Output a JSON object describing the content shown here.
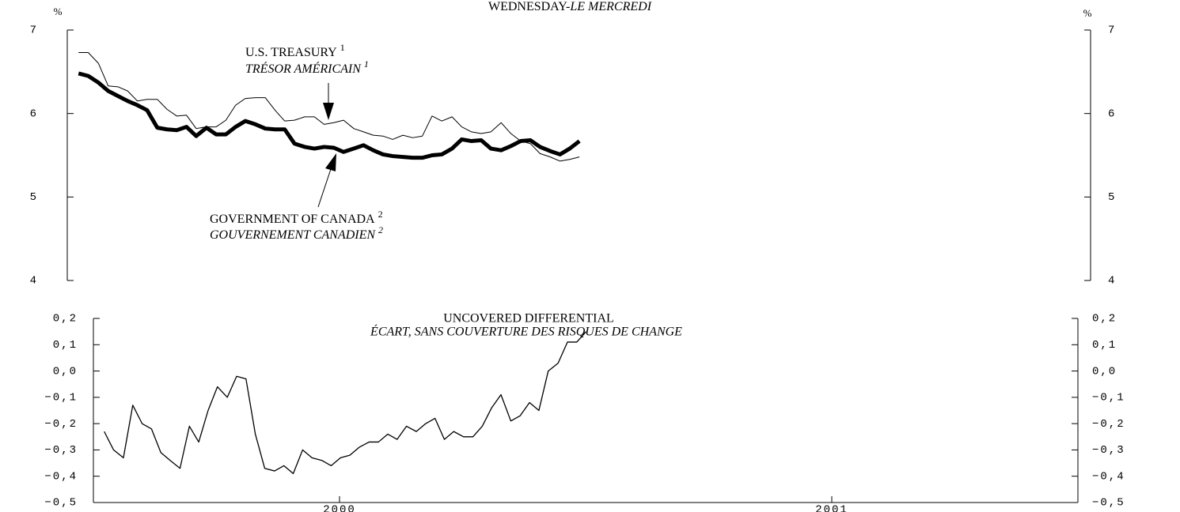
{
  "chart_data": [
    {
      "type": "line",
      "title": "WEDNESDAY-",
      "title_italic": "LE MERCREDI",
      "unit": "%",
      "x": [
        2000.022,
        2000.041,
        2000.061,
        2000.08,
        2000.099,
        2000.118,
        2000.137,
        2000.156,
        2000.176,
        2000.195,
        2000.214,
        2000.233,
        2000.252,
        2000.272,
        2000.291,
        2000.31,
        2000.329,
        2000.348,
        2000.368,
        2000.387,
        2000.406,
        2000.425,
        2000.444,
        2000.464,
        2000.483,
        2000.502,
        2000.521,
        2000.54,
        2000.56,
        2000.579,
        2000.598,
        2000.617,
        2000.636,
        2000.656,
        2000.675,
        2000.694,
        2000.713,
        2000.732,
        2000.752,
        2000.771,
        2000.79,
        2000.809,
        2000.828,
        2000.848,
        2000.867,
        2000.886,
        2000.905,
        2000.924,
        2000.944,
        2000.963,
        2000.982,
        2001.001
      ],
      "xlim": [
        2000,
        2002
      ],
      "ylim": [
        4,
        7
      ],
      "yticks": [
        4,
        5,
        6,
        7
      ],
      "series": [
        {
          "name": "U.S. TREASURY",
          "name_fr": "TRÉSOR AMÉRICAIN",
          "note": "1",
          "color": "#000000",
          "values": [
            6.73,
            6.73,
            6.6,
            6.33,
            6.32,
            6.27,
            6.15,
            6.17,
            6.17,
            6.05,
            5.97,
            5.98,
            5.82,
            5.84,
            5.84,
            5.92,
            6.1,
            6.18,
            6.19,
            6.19,
            6.04,
            5.91,
            5.92,
            5.96,
            5.96,
            5.87,
            5.89,
            5.92,
            5.82,
            5.78,
            5.74,
            5.73,
            5.69,
            5.74,
            5.71,
            5.73,
            5.97,
            5.91,
            5.96,
            5.84,
            5.78,
            5.76,
            5.78,
            5.89,
            5.76,
            5.67,
            5.64,
            5.52,
            5.48,
            5.43,
            5.45,
            5.48
          ]
        },
        {
          "name": "GOVERNMENT OF CANADA",
          "name_fr": "GOUVERNEMENT CANADIEN",
          "note": "2",
          "color": "#000000",
          "values": [
            6.48,
            6.45,
            6.37,
            6.27,
            6.21,
            6.15,
            6.1,
            6.04,
            5.83,
            5.81,
            5.8,
            5.84,
            5.73,
            5.83,
            5.75,
            5.75,
            5.84,
            5.91,
            5.87,
            5.82,
            5.81,
            5.81,
            5.64,
            5.6,
            5.58,
            5.6,
            5.59,
            5.54,
            5.58,
            5.62,
            5.56,
            5.51,
            5.49,
            5.48,
            5.47,
            5.47,
            5.5,
            5.51,
            5.58,
            5.69,
            5.67,
            5.68,
            5.58,
            5.56,
            5.61,
            5.67,
            5.68,
            5.6,
            5.55,
            5.51,
            5.58,
            5.67
          ]
        }
      ]
    },
    {
      "type": "line",
      "title": "UNCOVERED DIFFERENTIAL",
      "subtitle": "ÉCART, SANS COUVERTURE DES RISQUES DE CHANGE",
      "x": [
        2000.022,
        2000.041,
        2000.061,
        2000.08,
        2000.099,
        2000.118,
        2000.137,
        2000.156,
        2000.176,
        2000.195,
        2000.214,
        2000.233,
        2000.252,
        2000.272,
        2000.291,
        2000.31,
        2000.329,
        2000.348,
        2000.368,
        2000.387,
        2000.406,
        2000.425,
        2000.444,
        2000.464,
        2000.483,
        2000.502,
        2000.521,
        2000.54,
        2000.56,
        2000.579,
        2000.598,
        2000.617,
        2000.636,
        2000.656,
        2000.675,
        2000.694,
        2000.713,
        2000.732,
        2000.752,
        2000.771,
        2000.79,
        2000.809,
        2000.828,
        2000.848,
        2000.867,
        2000.886,
        2000.905,
        2000.924,
        2000.944,
        2000.963,
        2000.982,
        2001.001
      ],
      "xlim": [
        2000,
        2002
      ],
      "xticks": [
        {
          "value": 2000.5,
          "label": "2000"
        },
        {
          "value": 2001.5,
          "label": "2001"
        }
      ],
      "ylim": [
        -0.5,
        0.2
      ],
      "yticks": [
        {
          "value": -0.5,
          "label": "−0,5"
        },
        {
          "value": -0.4,
          "label": "−0,4"
        },
        {
          "value": -0.3,
          "label": "−0,3"
        },
        {
          "value": -0.2,
          "label": "−0,2"
        },
        {
          "value": -0.1,
          "label": "−0,1"
        },
        {
          "value": 0,
          "label": "0,0"
        },
        {
          "value": 0.1,
          "label": "0,1"
        },
        {
          "value": 0.2,
          "label": "0,2"
        }
      ],
      "series": [
        {
          "color": "#000000",
          "values": [
            -0.23,
            -0.3,
            -0.33,
            -0.13,
            -0.2,
            -0.22,
            -0.31,
            -0.34,
            -0.37,
            -0.21,
            -0.27,
            -0.15,
            -0.06,
            -0.1,
            -0.02,
            -0.03,
            -0.24,
            -0.37,
            -0.38,
            -0.36,
            -0.39,
            -0.3,
            -0.33,
            -0.34,
            -0.36,
            -0.33,
            -0.32,
            -0.29,
            -0.27,
            -0.27,
            -0.24,
            -0.26,
            -0.21,
            -0.23,
            -0.2,
            -0.18,
            -0.26,
            -0.23,
            -0.25,
            -0.25,
            -0.21,
            -0.14,
            -0.09,
            -0.19,
            -0.17,
            -0.12,
            -0.15,
            0.0,
            0.03,
            0.11,
            0.11,
            0.15
          ]
        }
      ]
    }
  ]
}
